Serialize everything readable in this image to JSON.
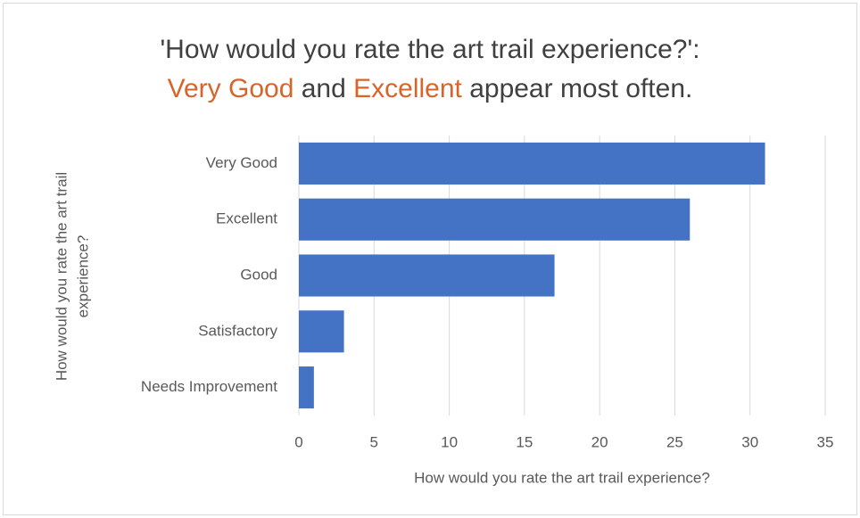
{
  "chart_data": {
    "type": "bar",
    "orientation": "horizontal",
    "title": {
      "line1": "'How would you rate the art trail experience?':",
      "line2": [
        {
          "text": "Very Good",
          "color": "#d9642a"
        },
        {
          "text": " and "
        },
        {
          "text": "Excellent",
          "color": "#d9642a"
        },
        {
          "text": " appear most often."
        }
      ]
    },
    "x_label": "How would you rate the art trail experience?",
    "y_label": [
      "How would you rate the art trail",
      "experience?"
    ],
    "categories": [
      "Very Good",
      "Excellent",
      "Good",
      "Satisfactory",
      "Needs Improvement"
    ],
    "values": [
      31,
      26,
      17,
      3,
      1
    ],
    "color": "#4472c4",
    "xlim": [
      0,
      35
    ],
    "xticks": [
      0,
      5,
      10,
      15,
      20,
      25,
      30,
      35
    ],
    "grid": true
  }
}
